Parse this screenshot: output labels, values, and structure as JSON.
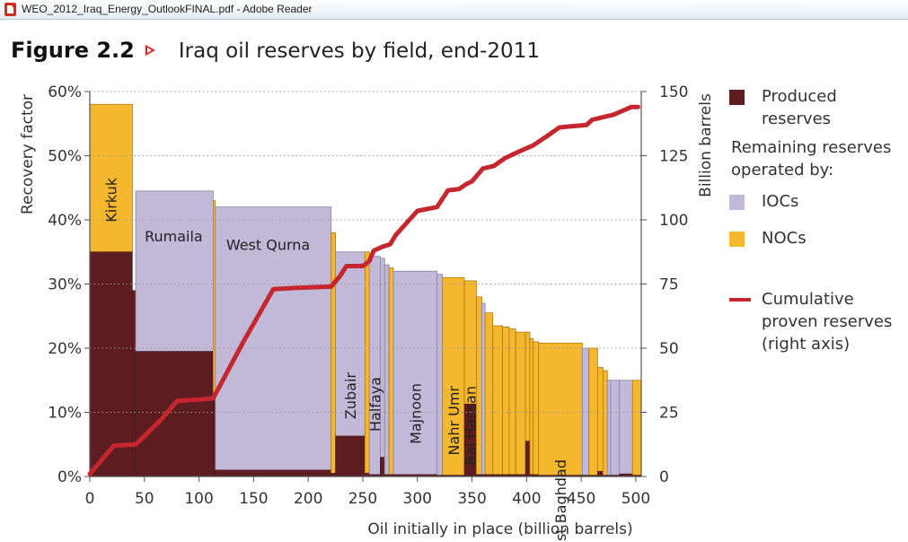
{
  "window": {
    "title": "WEO_2012_Iraq_Energy_OutlookFINAL.pdf - Adobe Reader"
  },
  "figure": {
    "label": "Figure 2.2",
    "title": "Iraq oil reserves by field, end-2011"
  },
  "legend": {
    "produced": "Produced\nreserves",
    "remaining_heading": "Remaining reserves\noperated by:",
    "iocs": "IOCs",
    "nocs": "NOCs",
    "cumulative": "Cumulative\nproven reserves\n(right axis)"
  },
  "colors": {
    "produced": "#5e1e21",
    "iocs": "#c2b9d8",
    "nocs": "#f5b72d",
    "cumulative": "#c6262e",
    "iocs_edge": "#8b7fa6",
    "nocs_edge": "#b07a12"
  },
  "chart_data": {
    "type": "bar",
    "subtype": "variable-width stacked columns with cumulative line",
    "xlabel": "Oil initially in place (billion barrels)",
    "ylabel": "Recovery factor",
    "y2label": "Billion barrels",
    "xlim": [
      0,
      505
    ],
    "xticks": [
      0,
      50,
      100,
      150,
      200,
      250,
      300,
      350,
      400,
      450,
      500
    ],
    "ylim": [
      0,
      60
    ],
    "yticks": [
      "0%",
      "10%",
      "20%",
      "30%",
      "40%",
      "50%",
      "60%"
    ],
    "y2lim": [
      0,
      150
    ],
    "y2ticks": [
      0,
      25,
      50,
      75,
      100,
      125,
      150
    ],
    "grid": "horizontal dotted",
    "legend_position": "right",
    "fields": [
      {
        "name": "Kirkuk",
        "x0": 0,
        "x1": 39,
        "recovery_pct": 58,
        "produced_pct": 35,
        "operator": "NOCs"
      },
      {
        "name": "",
        "x0": 39,
        "x1": 42,
        "recovery_pct": 29,
        "produced_pct": 29,
        "operator": "NOCs"
      },
      {
        "name": "Rumaila",
        "x0": 42,
        "x1": 113,
        "recovery_pct": 44.5,
        "produced_pct": 19.5,
        "operator": "IOCs"
      },
      {
        "name": "",
        "x0": 113,
        "x1": 115,
        "recovery_pct": 43,
        "produced_pct": 12,
        "operator": "NOCs"
      },
      {
        "name": "West Qurna",
        "x0": 115,
        "x1": 221,
        "recovery_pct": 42,
        "produced_pct": 1,
        "operator": "IOCs"
      },
      {
        "name": "",
        "x0": 221,
        "x1": 225,
        "recovery_pct": 38,
        "produced_pct": 0.5,
        "operator": "NOCs"
      },
      {
        "name": "Zubair",
        "x0": 225,
        "x1": 252,
        "recovery_pct": 35,
        "produced_pct": 6.3,
        "operator": "IOCs"
      },
      {
        "name": "",
        "x0": 252,
        "x1": 256,
        "recovery_pct": 35,
        "produced_pct": 0.5,
        "operator": "NOCs"
      },
      {
        "name": "Halfaya",
        "x0": 256,
        "x1": 266,
        "recovery_pct": 34.3,
        "produced_pct": 0.3,
        "operator": "IOCs"
      },
      {
        "name": "",
        "x0": 266,
        "x1": 270,
        "recovery_pct": 34,
        "produced_pct": 3,
        "operator": "IOCs"
      },
      {
        "name": "",
        "x0": 270,
        "x1": 274,
        "recovery_pct": 33,
        "produced_pct": 0.3,
        "operator": "IOCs"
      },
      {
        "name": "",
        "x0": 274,
        "x1": 278,
        "recovery_pct": 32.5,
        "produced_pct": 0.3,
        "operator": "NOCs"
      },
      {
        "name": "Majnoon",
        "x0": 278,
        "x1": 318,
        "recovery_pct": 32,
        "produced_pct": 0.3,
        "operator": "IOCs"
      },
      {
        "name": "",
        "x0": 318,
        "x1": 323,
        "recovery_pct": 31.5,
        "produced_pct": 0.2,
        "operator": "IOCs"
      },
      {
        "name": "Nahr Umr",
        "x0": 323,
        "x1": 343,
        "recovery_pct": 31,
        "produced_pct": 0.2,
        "operator": "NOCs"
      },
      {
        "name": "Bai Hassan",
        "x0": 343,
        "x1": 354,
        "recovery_pct": 30.5,
        "produced_pct": 11.3,
        "operator": "NOCs"
      },
      {
        "name": "",
        "x0": 354,
        "x1": 359,
        "recovery_pct": 28,
        "produced_pct": 0.3,
        "operator": "NOCs"
      },
      {
        "name": "",
        "x0": 359,
        "x1": 362,
        "recovery_pct": 27,
        "produced_pct": 0.3,
        "operator": "IOCs"
      },
      {
        "name": "",
        "x0": 362,
        "x1": 369,
        "recovery_pct": 25.5,
        "produced_pct": 0.3,
        "operator": "NOCs"
      },
      {
        "name": "",
        "x0": 369,
        "x1": 378,
        "recovery_pct": 23.5,
        "produced_pct": 0.3,
        "operator": "NOCs"
      },
      {
        "name": "",
        "x0": 378,
        "x1": 384,
        "recovery_pct": 23.3,
        "produced_pct": 0.3,
        "operator": "NOCs"
      },
      {
        "name": "",
        "x0": 384,
        "x1": 390,
        "recovery_pct": 23,
        "produced_pct": 0.3,
        "operator": "NOCs"
      },
      {
        "name": "",
        "x0": 390,
        "x1": 399,
        "recovery_pct": 22.5,
        "produced_pct": 0.3,
        "operator": "NOCs"
      },
      {
        "name": "",
        "x0": 399,
        "x1": 403,
        "recovery_pct": 22.5,
        "produced_pct": 5.5,
        "operator": "NOCs"
      },
      {
        "name": "",
        "x0": 403,
        "x1": 406,
        "recovery_pct": 21.5,
        "produced_pct": 0.3,
        "operator": "NOCs"
      },
      {
        "name": "",
        "x0": 406,
        "x1": 411,
        "recovery_pct": 21,
        "produced_pct": 0.3,
        "operator": "NOCs"
      },
      {
        "name": "East Baghdad",
        "x0": 411,
        "x1": 451,
        "recovery_pct": 20.8,
        "produced_pct": 0.2,
        "operator": "NOCs"
      },
      {
        "name": "",
        "x0": 451,
        "x1": 457,
        "recovery_pct": 20,
        "produced_pct": 0.2,
        "operator": "IOCs"
      },
      {
        "name": "",
        "x0": 457,
        "x1": 465,
        "recovery_pct": 20,
        "produced_pct": 0.2,
        "operator": "NOCs"
      },
      {
        "name": "",
        "x0": 465,
        "x1": 470,
        "recovery_pct": 17,
        "produced_pct": 0.8,
        "operator": "NOCs"
      },
      {
        "name": "",
        "x0": 470,
        "x1": 474,
        "recovery_pct": 16.5,
        "produced_pct": 0.2,
        "operator": "NOCs"
      },
      {
        "name": "",
        "x0": 474,
        "x1": 477,
        "recovery_pct": 15,
        "produced_pct": 0.2,
        "operator": "IOCs"
      },
      {
        "name": "",
        "x0": 477,
        "x1": 485,
        "recovery_pct": 15,
        "produced_pct": 0.2,
        "operator": "IOCs"
      },
      {
        "name": "",
        "x0": 485,
        "x1": 497,
        "recovery_pct": 15,
        "produced_pct": 0.4,
        "operator": "IOCs"
      },
      {
        "name": "",
        "x0": 497,
        "x1": 505,
        "recovery_pct": 15,
        "produced_pct": 0.2,
        "operator": "NOCs"
      }
    ],
    "cumulative_series": {
      "name": "Cumulative proven reserves",
      "axis": "right",
      "x": [
        0,
        22,
        42,
        65,
        80,
        100,
        113,
        140,
        168,
        190,
        221,
        229,
        235,
        250,
        256,
        260,
        268,
        275,
        280,
        300,
        318,
        328,
        338,
        345,
        350,
        354,
        360,
        370,
        380,
        385,
        395,
        406,
        420,
        430,
        455,
        460,
        470,
        480,
        496,
        502
      ],
      "y": [
        1,
        12,
        12.5,
        22,
        29.5,
        30,
        30.5,
        52,
        73,
        73.5,
        74,
        78,
        82,
        82,
        84,
        88,
        89.5,
        90.5,
        94,
        103.5,
        105,
        111.5,
        112,
        114,
        115,
        117,
        120,
        121,
        124,
        125,
        127,
        129,
        133,
        136,
        137,
        139,
        140,
        141,
        144,
        144
      ]
    }
  }
}
